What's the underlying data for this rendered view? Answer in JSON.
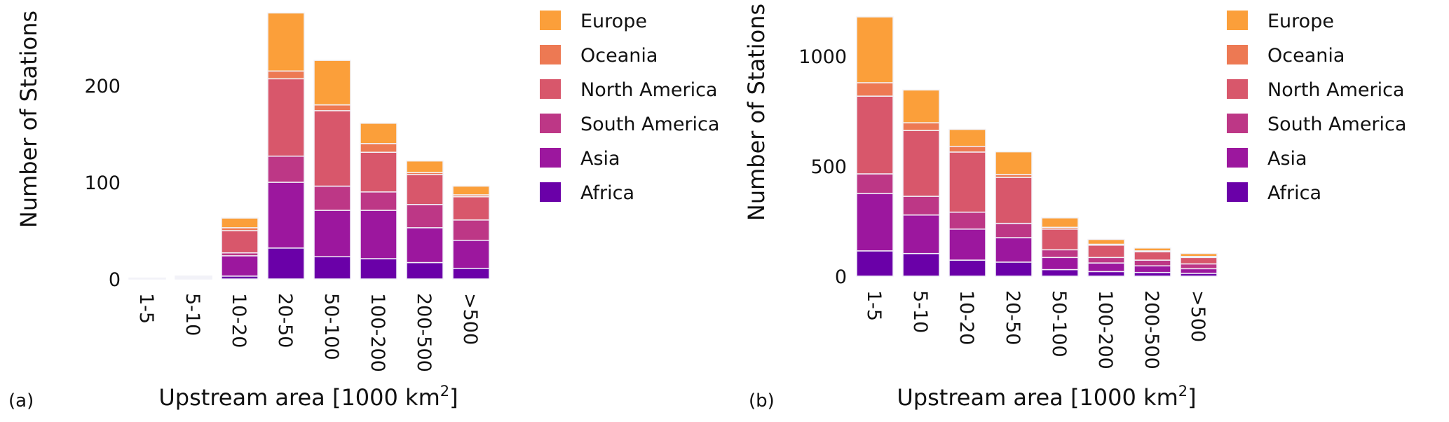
{
  "colors": {
    "Africa": "#6a00a8",
    "Asia": "#9c179e",
    "South America": "#bd3786",
    "North America": "#d8576b",
    "Oceania": "#ed7953",
    "Europe": "#fb9f3a"
  },
  "chart_data": [
    {
      "type": "bar",
      "stacked": true,
      "panel_label": "(a)",
      "xlabel": "Upstream area [1000 km",
      "xlabel_sup": "2",
      "xlabel_end": "]",
      "ylabel": "Number of Stations",
      "ylim": [
        0,
        280
      ],
      "yticks": [
        0,
        100,
        200
      ],
      "categories": [
        "1-5",
        "5-10",
        "10-20",
        "20-50",
        "50-100",
        "100-200",
        "200-500",
        ">500"
      ],
      "legend": [
        "Europe",
        "Oceania",
        "North America",
        "South America",
        "Asia",
        "Africa"
      ],
      "legend_position": "right",
      "series": [
        {
          "name": "Africa",
          "values": [
            0,
            1,
            3,
            32,
            23,
            21,
            17,
            11
          ]
        },
        {
          "name": "Asia",
          "values": [
            1,
            1,
            21,
            68,
            48,
            50,
            36,
            29
          ]
        },
        {
          "name": "South America",
          "values": [
            0,
            0,
            3,
            27,
            25,
            19,
            24,
            21
          ]
        },
        {
          "name": "North America",
          "values": [
            0,
            1,
            23,
            80,
            78,
            41,
            31,
            24
          ]
        },
        {
          "name": "Oceania",
          "values": [
            0,
            0,
            3,
            8,
            6,
            9,
            2,
            2
          ]
        },
        {
          "name": "Europe",
          "values": [
            0,
            0,
            10,
            60,
            46,
            21,
            12,
            9
          ]
        }
      ]
    },
    {
      "type": "bar",
      "stacked": true,
      "panel_label": "(b)",
      "xlabel": "Upstream area [1000 km",
      "xlabel_sup": "2",
      "xlabel_end": "]",
      "ylabel": "Number of Stations",
      "ylim": [
        0,
        1200
      ],
      "yticks": [
        0,
        500,
        1000
      ],
      "categories": [
        "1-5",
        "5-10",
        "10-20",
        "20-50",
        "50-100",
        "100-200",
        "200-500",
        ">500"
      ],
      "legend": [
        "Europe",
        "Oceania",
        "North America",
        "South America",
        "Asia",
        "Africa"
      ],
      "legend_position": "right",
      "series": [
        {
          "name": "Africa",
          "values": [
            115,
            103,
            73,
            64,
            30,
            21,
            17,
            13
          ]
        },
        {
          "name": "Asia",
          "values": [
            261,
            175,
            141,
            111,
            55,
            39,
            30,
            21
          ]
        },
        {
          "name": "South America",
          "values": [
            89,
            85,
            77,
            65,
            35,
            25,
            26,
            22
          ]
        },
        {
          "name": "North America",
          "values": [
            353,
            299,
            273,
            209,
            94,
            56,
            38,
            29
          ]
        },
        {
          "name": "Oceania",
          "values": [
            61,
            35,
            26,
            13,
            8,
            4,
            4,
            5
          ]
        },
        {
          "name": "Europe",
          "values": [
            299,
            149,
            77,
            103,
            43,
            22,
            13,
            13
          ]
        }
      ]
    }
  ]
}
